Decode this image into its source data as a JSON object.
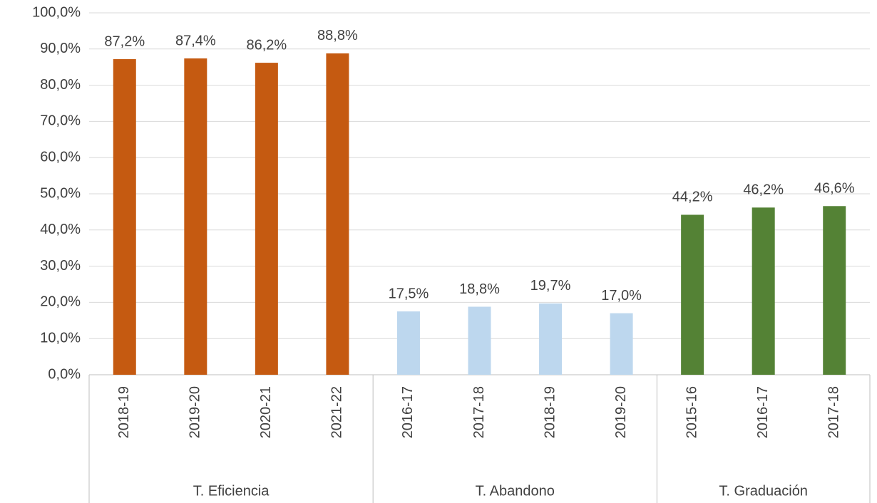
{
  "chart_data": {
    "type": "bar",
    "groups": [
      {
        "name": "T. Eficiencia",
        "color": "#c55a11",
        "categories": [
          "2018-19",
          "2019-20",
          "2020-21",
          "2021-22"
        ],
        "values": [
          87.2,
          87.4,
          86.2,
          88.8
        ],
        "value_labels": [
          "87,2%",
          "87,4%",
          "86,2%",
          "88,8%"
        ]
      },
      {
        "name": "T. Abandono",
        "color": "#bdd7ee",
        "categories": [
          "2016-17",
          "2017-18",
          "2018-19",
          "2019-20"
        ],
        "values": [
          17.5,
          18.8,
          19.7,
          17.0
        ],
        "value_labels": [
          "17,5%",
          "18,8%",
          "19,7%",
          "17,0%"
        ]
      },
      {
        "name": "T. Graduación",
        "color": "#548235",
        "categories": [
          "2015-16",
          "2016-17",
          "2017-18"
        ],
        "values": [
          44.2,
          46.2,
          46.6
        ],
        "value_labels": [
          "44,2%",
          "46,2%",
          "46,6%"
        ]
      }
    ],
    "ylim": [
      0,
      100
    ],
    "yticks": [
      {
        "value": 0,
        "label": "0,0%"
      },
      {
        "value": 10,
        "label": "10,0%"
      },
      {
        "value": 20,
        "label": "20,0%"
      },
      {
        "value": 30,
        "label": "30,0%"
      },
      {
        "value": 40,
        "label": "40,0%"
      },
      {
        "value": 50,
        "label": "50,0%"
      },
      {
        "value": 60,
        "label": "60,0%"
      },
      {
        "value": 70,
        "label": "70,0%"
      },
      {
        "value": 80,
        "label": "80,0%"
      },
      {
        "value": 90,
        "label": "90,0%"
      },
      {
        "value": 100,
        "label": "100,0%"
      }
    ],
    "grid": true
  }
}
